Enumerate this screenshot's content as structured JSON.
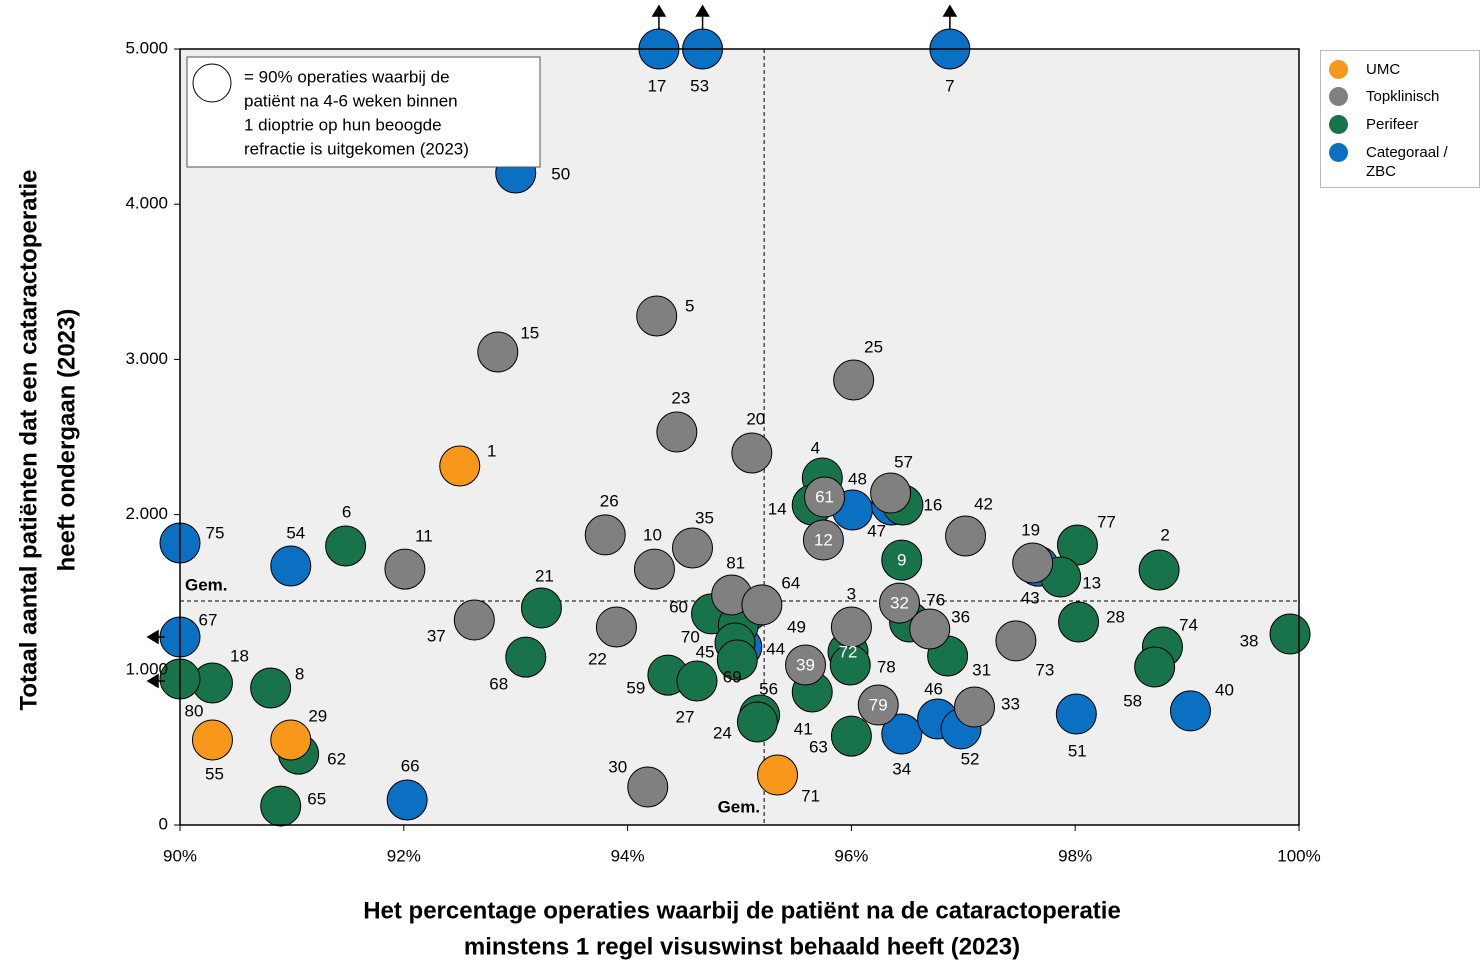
{
  "chart_data": {
    "type": "scatter",
    "x_label": [
      "Het percentage operaties waarbij de patiënt na de cataractoperatie",
      "minstens 1 regel visuswinst behaald heeft (2023)"
    ],
    "y_label": [
      "Totaal aantal patiënten dat een cataractoperatie",
      "heeft ondergaan (2023)"
    ],
    "xlim": [
      90,
      100
    ],
    "ylim": [
      0,
      5000
    ],
    "xticks": [
      {
        "value": 90,
        "label": "90%"
      },
      {
        "value": 92,
        "label": "92%"
      },
      {
        "value": 94,
        "label": "94%"
      },
      {
        "value": 96,
        "label": "96%"
      },
      {
        "value": 98,
        "label": "98%"
      },
      {
        "value": 100,
        "label": "100%"
      }
    ],
    "yticks": [
      0,
      {
        "value": 1000,
        "label": "1.000"
      },
      {
        "value": 2000,
        "label": "2.000"
      },
      {
        "value": 3000,
        "label": "3.000"
      },
      {
        "value": 4000,
        "label": "4.000"
      },
      {
        "value": 5000,
        "label": "5.000"
      }
    ],
    "mean_lines": {
      "x": 95.22,
      "y": 1443,
      "label": "Gem."
    },
    "size_legend": [
      "= 90% operaties waarbij de",
      "patiënt na 4-6 weken binnen",
      "1 dioptrie op hun beoogde",
      "refractie is uitgekomen (2023)"
    ],
    "legend_position": "outside-top-right",
    "series": [
      {
        "name": "UMC",
        "color": "#f7981d",
        "labels": [
          "1",
          "55",
          "29",
          "71"
        ],
        "x": [
          92.5,
          90.29,
          90.99,
          95.34
        ],
        "values": [
          2313,
          548,
          548,
          322
        ]
      },
      {
        "name": "Topklinisch",
        "color": "#808080",
        "labels": [
          "5",
          "15",
          "23",
          "20",
          "25",
          "57",
          "61",
          "12",
          "42",
          "26",
          "10",
          "35",
          "11",
          "37",
          "22",
          "81",
          "64",
          "19",
          "3",
          "32",
          "76",
          "73",
          "39",
          "79",
          "33",
          "30"
        ],
        "x": [
          94.26,
          92.84,
          94.44,
          95.11,
          96.02,
          96.35,
          95.76,
          95.75,
          97.02,
          93.8,
          94.24,
          94.58,
          92.01,
          92.63,
          93.9,
          94.93,
          95.2,
          97.62,
          96.0,
          96.43,
          96.7,
          97.47,
          95.59,
          96.24,
          97.1,
          94.18
        ],
        "values": [
          3280,
          3048,
          2532,
          2397,
          2867,
          2139,
          2113,
          1836,
          1862,
          1869,
          1649,
          1785,
          1649,
          1321,
          1276,
          1482,
          1418,
          1688,
          1276,
          1430,
          1263,
          1186,
          1031,
          773,
          760,
          245
        ]
      },
      {
        "name": "Perifeer",
        "color": "#19734a",
        "labels": [
          "4",
          "14",
          "16",
          "9",
          "77",
          "2",
          "13",
          "28",
          "74",
          "58",
          "38",
          "36",
          "31",
          "72",
          "78",
          "41",
          "63",
          "56",
          "24",
          "6",
          "21",
          "68",
          "59",
          "27",
          "18",
          "8",
          "80",
          "62",
          "65",
          "60",
          "70",
          "45",
          "69"
        ],
        "x": [
          95.74,
          95.65,
          96.46,
          96.45,
          98.02,
          98.75,
          97.87,
          98.03,
          98.78,
          98.71,
          99.92,
          96.52,
          96.86,
          95.97,
          95.99,
          95.65,
          96.0,
          95.18,
          95.16,
          91.48,
          93.23,
          93.09,
          94.36,
          94.62,
          90.29,
          90.81,
          90.0,
          91.06,
          90.9,
          94.75,
          94.99,
          94.96,
          94.98
        ],
        "values": [
          2236,
          2062,
          2062,
          1707,
          1804,
          1643,
          1598,
          1308,
          1147,
          1018,
          1231,
          1308,
          1089,
          1115,
          1031,
          857,
          573,
          709,
          664,
          1798,
          1398,
          1082,
          966,
          928,
          915,
          883,
          941,
          457,
          122,
          1360,
          1289,
          1173,
          1063
        ]
      },
      {
        "name": "Categoraal / ZBC",
        "color": "#0b6fc2",
        "labels": [
          "17",
          "53",
          "7",
          "50",
          "48",
          "47",
          "75",
          "54",
          "67",
          "49",
          "44",
          "43",
          "34",
          "46",
          "52",
          "51",
          "40",
          "66"
        ],
        "x": [
          94.28,
          94.67,
          96.88,
          93.0,
          96.01,
          96.36,
          90.0,
          90.99,
          90.0,
          95.08,
          95.02,
          97.67,
          96.45,
          96.77,
          96.98,
          98.01,
          99.03,
          92.03
        ],
        "values": [
          5000,
          5000,
          5000,
          4201,
          2030,
          2062,
          1817,
          1669,
          1211,
          1379,
          1147,
          1668,
          586,
          683,
          619,
          715,
          735,
          161
        ]
      }
    ]
  }
}
